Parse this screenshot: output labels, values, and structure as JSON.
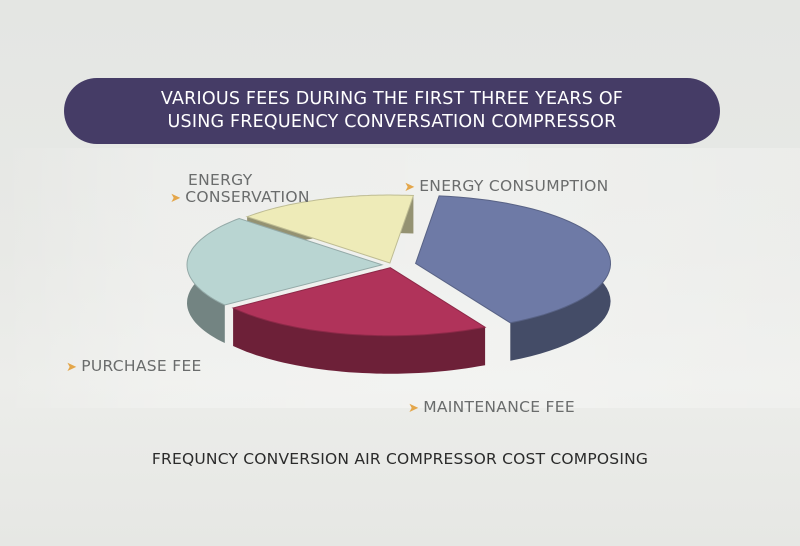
{
  "title_lines": [
    "VARIOUS FEES DURING THE FIRST THREE YEARS OF",
    "USING FREQUENCY CONVERSATION COMPRESSOR"
  ],
  "caption": "FREQUNCY CONVERSION AIR COMPRESSOR COST COMPOSING",
  "chart_data": {
    "type": "pie",
    "labels": [
      {
        "lines": [
          "ENERGY CONSUMPTION"
        ],
        "color": "#6e7aa6"
      },
      {
        "lines": [
          "MAINTENANCE FEE"
        ],
        "color": "#b0335a"
      },
      {
        "lines": [
          "PURCHASE FEE"
        ],
        "color": "#b9d5d2"
      },
      {
        "lines": [
          "ENERGY",
          "CONSERVATION"
        ],
        "color": "#eeebb8"
      }
    ],
    "values": [
      40,
      23,
      22,
      15
    ]
  }
}
